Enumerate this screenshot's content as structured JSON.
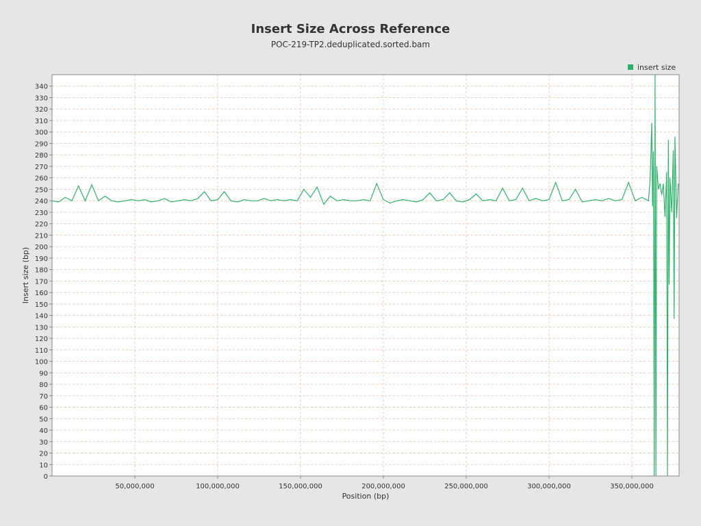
{
  "chart_data": {
    "type": "line",
    "title": "Insert Size Across Reference",
    "subtitle": "POC-219-TP2.deduplicated.sorted.bam",
    "xlabel": "Position (bp)",
    "ylabel": "Insert size (bp)",
    "legend": "top-right",
    "grid": true,
    "xlim": [
      0,
      378500000
    ],
    "ylim": [
      0,
      350
    ],
    "xticks": [
      {
        "value": 50000000,
        "label": "50,000,000"
      },
      {
        "value": 100000000,
        "label": "100,000,000"
      },
      {
        "value": 150000000,
        "label": "150,000,000"
      },
      {
        "value": 200000000,
        "label": "200,000,000"
      },
      {
        "value": 250000000,
        "label": "250,000,000"
      },
      {
        "value": 300000000,
        "label": "300,000,000"
      },
      {
        "value": 350000000,
        "label": "350,000,000"
      }
    ],
    "yticks": [
      0,
      10,
      20,
      30,
      40,
      50,
      60,
      70,
      80,
      90,
      100,
      110,
      120,
      130,
      140,
      150,
      160,
      170,
      180,
      190,
      200,
      210,
      220,
      230,
      240,
      250,
      260,
      270,
      280,
      290,
      300,
      310,
      320,
      330,
      340
    ],
    "x": [
      0,
      4000000,
      8000000,
      12000000,
      16000000,
      20000000,
      24000000,
      28000000,
      32000000,
      36000000,
      40000000,
      44000000,
      48000000,
      52000000,
      56000000,
      60000000,
      64000000,
      68000000,
      72000000,
      76000000,
      80000000,
      84000000,
      88000000,
      92000000,
      96000000,
      100000000,
      104000000,
      108000000,
      112000000,
      116000000,
      120000000,
      124000000,
      128000000,
      132000000,
      136000000,
      140000000,
      144000000,
      148000000,
      152000000,
      156000000,
      160000000,
      164000000,
      168000000,
      172000000,
      176000000,
      180000000,
      184000000,
      188000000,
      192000000,
      196000000,
      200000000,
      204000000,
      208000000,
      212000000,
      216000000,
      220000000,
      224000000,
      228000000,
      232000000,
      236000000,
      240000000,
      244000000,
      248000000,
      252000000,
      256000000,
      260000000,
      264000000,
      268000000,
      272000000,
      276000000,
      280000000,
      284000000,
      288000000,
      292000000,
      296000000,
      300000000,
      304000000,
      308000000,
      312000000,
      316000000,
      320000000,
      324000000,
      328000000,
      332000000,
      336000000,
      340000000,
      344000000,
      348000000,
      352000000,
      356000000,
      360000000,
      361000000,
      362000000,
      362500000,
      363000000,
      363500000,
      364000000,
      364500000,
      365000000,
      366000000,
      367000000,
      368000000,
      369000000,
      370000000,
      371000000,
      371500000,
      372000000,
      372500000,
      373000000,
      374000000,
      375000000,
      375500000,
      376000000,
      377000000,
      378000000
    ],
    "series": [
      {
        "name": "insert size",
        "color": "#2db36b",
        "values": [
          240,
          239,
          243,
          240,
          253,
          240,
          254,
          240,
          244,
          240,
          239,
          240,
          241,
          240,
          241,
          239,
          240,
          242,
          239,
          240,
          241,
          240,
          242,
          248,
          240,
          241,
          248,
          240,
          239,
          241,
          240,
          240,
          242,
          240,
          241,
          240,
          241,
          240,
          250,
          243,
          252,
          237,
          244,
          240,
          241,
          240,
          240,
          241,
          240,
          255,
          241,
          238,
          240,
          241,
          240,
          239,
          241,
          247,
          240,
          241,
          247,
          240,
          239,
          241,
          246,
          240,
          241,
          240,
          251,
          240,
          241,
          251,
          240,
          242,
          240,
          241,
          256,
          240,
          241,
          250,
          239,
          240,
          241,
          240,
          242,
          240,
          241,
          256,
          240,
          243,
          240,
          258,
          308,
          235,
          283,
          0,
          350,
          0,
          270,
          250,
          255,
          245,
          255,
          226,
          265,
          0,
          293,
          167,
          260,
          230,
          284,
          137,
          296,
          225,
          255
        ]
      }
    ]
  }
}
